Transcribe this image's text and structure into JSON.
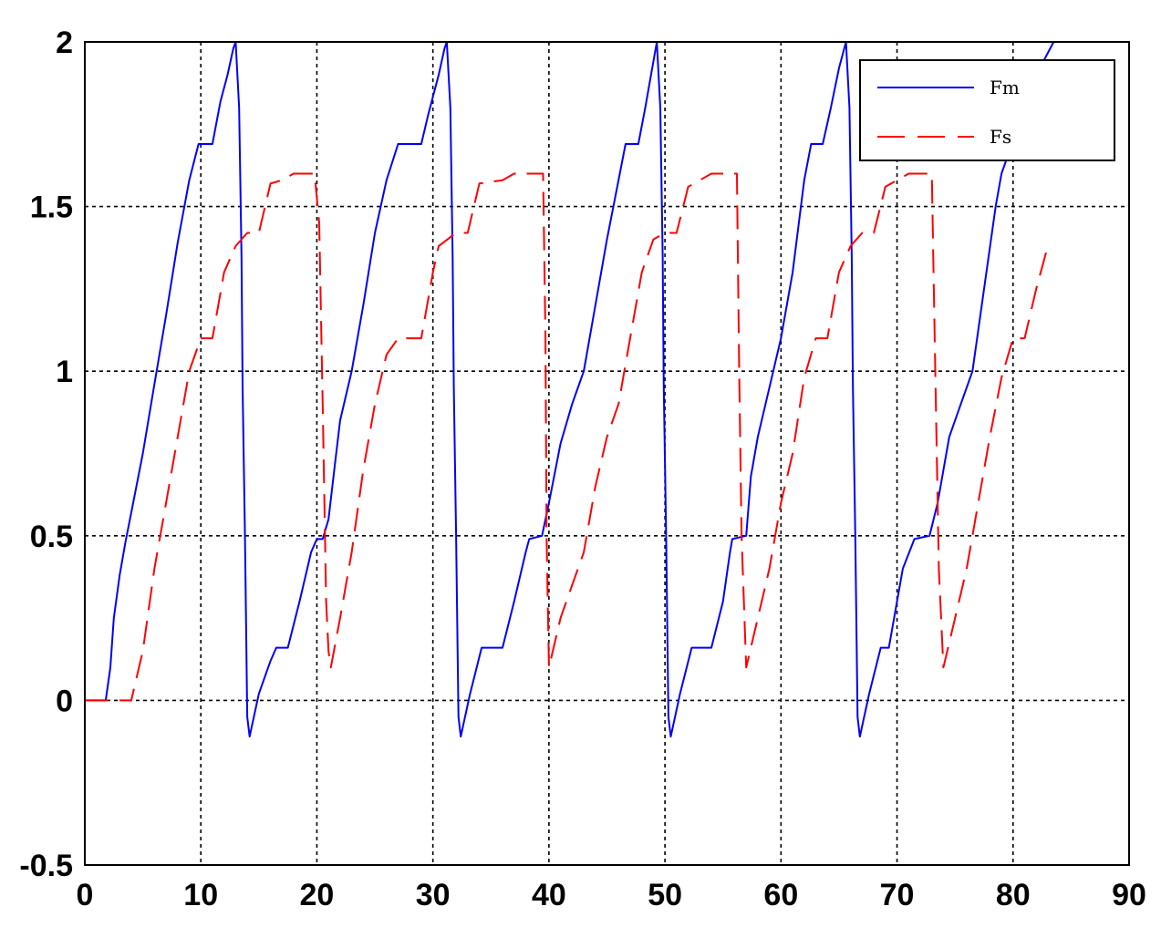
{
  "chart_data": {
    "type": "line",
    "title": "",
    "xlabel": "",
    "ylabel": "",
    "xlim": [
      0,
      90
    ],
    "ylim": [
      -0.5,
      2
    ],
    "grid": true,
    "legend_position": "top-right",
    "x_ticks": [
      "0",
      "10",
      "20",
      "30",
      "40",
      "50",
      "60",
      "70",
      "80",
      "90"
    ],
    "y_ticks": [
      "-0.5",
      "0",
      "0.5",
      "1",
      "1.5",
      "2"
    ],
    "x_tick_values": [
      0,
      10,
      20,
      30,
      40,
      50,
      60,
      70,
      80,
      90
    ],
    "y_tick_values": [
      -0.5,
      0,
      0.5,
      1,
      1.5,
      2
    ],
    "series": [
      {
        "name": "Fm",
        "color": "#0000ff",
        "style": "solid",
        "points": [
          [
            0,
            0
          ],
          [
            1.8,
            0
          ],
          [
            2.2,
            0.1
          ],
          [
            2.5,
            0.25
          ],
          [
            3,
            0.38
          ],
          [
            3.5,
            0.48
          ],
          [
            4,
            0.57
          ],
          [
            5,
            0.75
          ],
          [
            6,
            0.96
          ],
          [
            7,
            1.17
          ],
          [
            8,
            1.39
          ],
          [
            9,
            1.58
          ],
          [
            9.8,
            1.69
          ],
          [
            11,
            1.69
          ],
          [
            11.7,
            1.82
          ],
          [
            12.3,
            1.9
          ],
          [
            12.8,
            1.98
          ],
          [
            13,
            2.0
          ],
          [
            13.3,
            1.8
          ],
          [
            13.5,
            1.35
          ],
          [
            13.6,
            0.95
          ],
          [
            13.8,
            0.5
          ],
          [
            14,
            -0.05
          ],
          [
            14.2,
            -0.11
          ],
          [
            15,
            0.02
          ],
          [
            16,
            0.12
          ],
          [
            16.5,
            0.16
          ],
          [
            17.5,
            0.16
          ],
          [
            18.5,
            0.3
          ],
          [
            19.5,
            0.45
          ],
          [
            20,
            0.49
          ],
          [
            20.5,
            0.49
          ],
          [
            21,
            0.55
          ],
          [
            21.5,
            0.7
          ],
          [
            22,
            0.85
          ],
          [
            23,
            1.0
          ],
          [
            24,
            1.2
          ],
          [
            25,
            1.42
          ],
          [
            26,
            1.58
          ],
          [
            27,
            1.69
          ],
          [
            29,
            1.69
          ],
          [
            29.6,
            1.78
          ],
          [
            30.5,
            1.9
          ],
          [
            31,
            1.98
          ],
          [
            31.2,
            2.0
          ],
          [
            31.5,
            1.8
          ],
          [
            31.7,
            1.35
          ],
          [
            31.8,
            0.95
          ],
          [
            32,
            0.5
          ],
          [
            32.2,
            -0.05
          ],
          [
            32.4,
            -0.11
          ],
          [
            33.2,
            0.02
          ],
          [
            34.2,
            0.16
          ],
          [
            36,
            0.16
          ],
          [
            37,
            0.3
          ],
          [
            38,
            0.45
          ],
          [
            38.3,
            0.49
          ],
          [
            39.4,
            0.5
          ],
          [
            40,
            0.6
          ],
          [
            41,
            0.78
          ],
          [
            42,
            0.9
          ],
          [
            43,
            1.0
          ],
          [
            44,
            1.2
          ],
          [
            45,
            1.4
          ],
          [
            46,
            1.58
          ],
          [
            46.6,
            1.69
          ],
          [
            47.7,
            1.69
          ],
          [
            48.3,
            1.8
          ],
          [
            48.9,
            1.92
          ],
          [
            49.3,
            2.0
          ],
          [
            49.6,
            1.8
          ],
          [
            49.8,
            1.35
          ],
          [
            49.9,
            0.95
          ],
          [
            50.1,
            0.5
          ],
          [
            50.3,
            -0.05
          ],
          [
            50.5,
            -0.11
          ],
          [
            51.3,
            0.02
          ],
          [
            52.3,
            0.16
          ],
          [
            54,
            0.16
          ],
          [
            55,
            0.3
          ],
          [
            55.6,
            0.45
          ],
          [
            55.8,
            0.49
          ],
          [
            57,
            0.5
          ],
          [
            57.4,
            0.68
          ],
          [
            58,
            0.8
          ],
          [
            59,
            0.95
          ],
          [
            60,
            1.1
          ],
          [
            61,
            1.3
          ],
          [
            62,
            1.58
          ],
          [
            62.6,
            1.69
          ],
          [
            63.6,
            1.69
          ],
          [
            64.3,
            1.8
          ],
          [
            65,
            1.92
          ],
          [
            65.6,
            2.0
          ],
          [
            65.9,
            1.8
          ],
          [
            66.1,
            1.35
          ],
          [
            66.2,
            0.95
          ],
          [
            66.4,
            0.5
          ],
          [
            66.6,
            -0.05
          ],
          [
            66.8,
            -0.11
          ],
          [
            67.6,
            0.02
          ],
          [
            68.6,
            0.16
          ],
          [
            69.3,
            0.16
          ],
          [
            70.5,
            0.4
          ],
          [
            71.5,
            0.49
          ],
          [
            72.8,
            0.5
          ],
          [
            73.5,
            0.6
          ],
          [
            74.5,
            0.8
          ],
          [
            75.5,
            0.9
          ],
          [
            76.5,
            1.0
          ],
          [
            77.5,
            1.25
          ],
          [
            78.5,
            1.5
          ],
          [
            79,
            1.6
          ],
          [
            80,
            1.7
          ],
          [
            81,
            1.82
          ],
          [
            82,
            1.9
          ],
          [
            83.5,
            2.0
          ]
        ]
      },
      {
        "name": "Fs",
        "color": "#ff0000",
        "style": "dashed",
        "points": [
          [
            0,
            0
          ],
          [
            4,
            0
          ],
          [
            5,
            0.15
          ],
          [
            6,
            0.4
          ],
          [
            7,
            0.6
          ],
          [
            8,
            0.8
          ],
          [
            9,
            1.0
          ],
          [
            10,
            1.1
          ],
          [
            11,
            1.1
          ],
          [
            11.5,
            1.2
          ],
          [
            12,
            1.3
          ],
          [
            13,
            1.38
          ],
          [
            14,
            1.42
          ],
          [
            15,
            1.42
          ],
          [
            16,
            1.57
          ],
          [
            17,
            1.58
          ],
          [
            18,
            1.6
          ],
          [
            19.8,
            1.6
          ],
          [
            20.2,
            1.45
          ],
          [
            20.5,
            0.9
          ],
          [
            20.8,
            0.3
          ],
          [
            21,
            0.15
          ],
          [
            21.2,
            0.1
          ],
          [
            22,
            0.25
          ],
          [
            23,
            0.45
          ],
          [
            24,
            0.7
          ],
          [
            25,
            0.9
          ],
          [
            26,
            1.05
          ],
          [
            27,
            1.1
          ],
          [
            29,
            1.1
          ],
          [
            30,
            1.3
          ],
          [
            30.5,
            1.38
          ],
          [
            32,
            1.42
          ],
          [
            33,
            1.42
          ],
          [
            34,
            1.57
          ],
          [
            36,
            1.58
          ],
          [
            37,
            1.6
          ],
          [
            39.5,
            1.6
          ],
          [
            39.7,
            1.1
          ],
          [
            39.8,
            0.5
          ],
          [
            40,
            0.1
          ],
          [
            41,
            0.25
          ],
          [
            42,
            0.35
          ],
          [
            43,
            0.45
          ],
          [
            44,
            0.65
          ],
          [
            45,
            0.8
          ],
          [
            46,
            0.9
          ],
          [
            47,
            1.1
          ],
          [
            48,
            1.3
          ],
          [
            49,
            1.4
          ],
          [
            50,
            1.42
          ],
          [
            51,
            1.42
          ],
          [
            52,
            1.56
          ],
          [
            53,
            1.58
          ],
          [
            54,
            1.6
          ],
          [
            56.2,
            1.6
          ],
          [
            56.4,
            1.0
          ],
          [
            56.6,
            0.5
          ],
          [
            57,
            0.1
          ],
          [
            58,
            0.25
          ],
          [
            59,
            0.4
          ],
          [
            60,
            0.6
          ],
          [
            61,
            0.75
          ],
          [
            62,
            0.98
          ],
          [
            63,
            1.1
          ],
          [
            64,
            1.1
          ],
          [
            65,
            1.3
          ],
          [
            66,
            1.38
          ],
          [
            67,
            1.42
          ],
          [
            68,
            1.42
          ],
          [
            69,
            1.56
          ],
          [
            70,
            1.58
          ],
          [
            71,
            1.6
          ],
          [
            73,
            1.6
          ],
          [
            73.3,
            1.0
          ],
          [
            73.6,
            0.4
          ],
          [
            74,
            0.1
          ],
          [
            75,
            0.25
          ],
          [
            76,
            0.4
          ],
          [
            77,
            0.6
          ],
          [
            78,
            0.8
          ],
          [
            79,
            0.98
          ],
          [
            80,
            1.1
          ],
          [
            81,
            1.1
          ],
          [
            82,
            1.25
          ],
          [
            83,
            1.38
          ]
        ]
      }
    ]
  }
}
